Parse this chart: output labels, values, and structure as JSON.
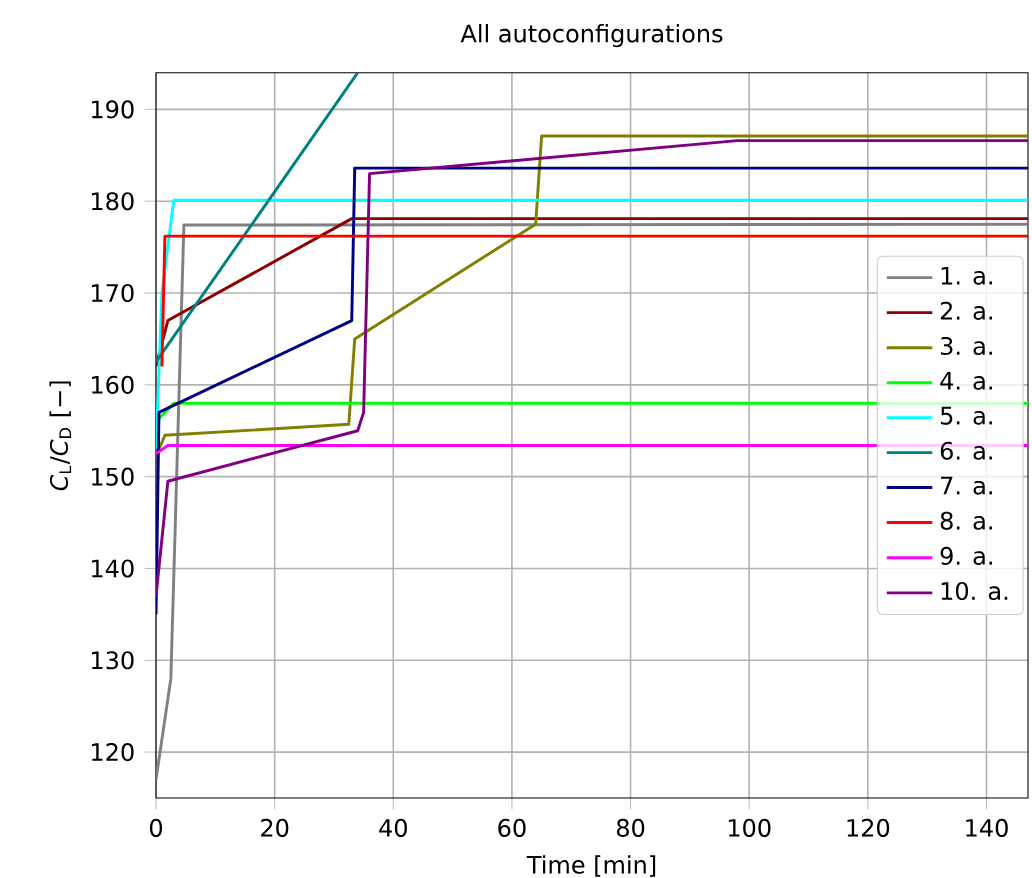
{
  "chart_data": {
    "type": "line",
    "title": "All autoconfigurations",
    "xlabel": "Time [min]",
    "ylabel": "*C*$_{L}$/*C*$_{D}$ [−]",
    "xlim": [
      0,
      147
    ],
    "ylim": [
      115,
      194
    ],
    "xticks": [
      0,
      20,
      40,
      60,
      80,
      100,
      120,
      140
    ],
    "yticks": [
      120,
      130,
      140,
      150,
      160,
      170,
      180,
      190
    ],
    "grid": true,
    "legend": "right",
    "series": [
      {
        "name": "1. a.",
        "color": "#808080",
        "x": [
          0,
          2.5,
          4.7,
          147
        ],
        "values": [
          117,
          128,
          177.4,
          177.5
        ]
      },
      {
        "name": "2. a.",
        "color": "#8b0000",
        "x": [
          0,
          2,
          33,
          147
        ],
        "values": [
          162,
          167,
          178.1,
          178.1
        ]
      },
      {
        "name": "3. a.",
        "color": "#808000",
        "x": [
          0.5,
          1.5,
          32.5,
          33.5,
          64,
          65,
          147
        ],
        "values": [
          153,
          154.5,
          155.7,
          165,
          177.5,
          187.1,
          187.1
        ]
      },
      {
        "name": "4. a.",
        "color": "#00ff00",
        "x": [
          0,
          3,
          147
        ],
        "values": [
          156,
          158,
          158
        ]
      },
      {
        "name": "5. a.",
        "color": "#00ffff",
        "x": [
          0,
          1,
          3,
          147
        ],
        "values": [
          153,
          170,
          180.1,
          180.1
        ]
      },
      {
        "name": "6. a.",
        "color": "#008080",
        "x": [
          0,
          34
        ],
        "values": [
          162.5,
          194
        ]
      },
      {
        "name": "7. a.",
        "color": "#000080",
        "x": [
          0,
          0.5,
          33,
          33.5,
          147
        ],
        "values": [
          135,
          157,
          167,
          183.6,
          183.6
        ]
      },
      {
        "name": "8. a.",
        "color": "#ff0000",
        "x": [
          1,
          1.5,
          147
        ],
        "values": [
          162,
          176.2,
          176.2
        ]
      },
      {
        "name": "9. a.",
        "color": "#ff00ff",
        "x": [
          0,
          2,
          147
        ],
        "values": [
          152.5,
          153.4,
          153.4
        ]
      },
      {
        "name": "10. a.",
        "color": "#800080",
        "x": [
          0,
          2,
          34,
          35,
          36,
          98,
          147
        ],
        "values": [
          137,
          149.5,
          155,
          157,
          183,
          186.6,
          186.6
        ]
      }
    ]
  }
}
